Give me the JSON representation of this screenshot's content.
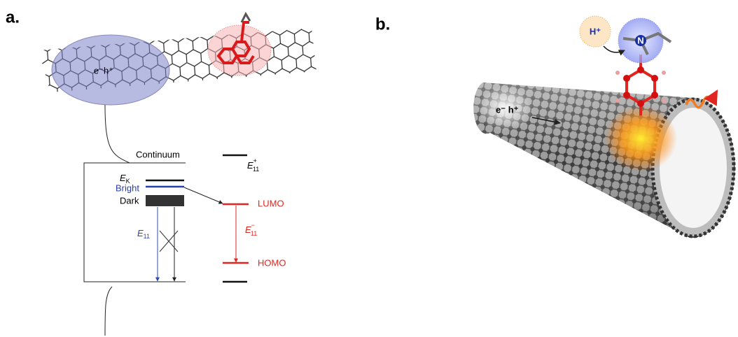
{
  "panel_a": {
    "label": "a.",
    "exciton": "e⁻h⁺",
    "continuum": "Continuum",
    "ek": {
      "base": "E",
      "sub": "K"
    },
    "bright": "Bright",
    "dark": "Dark",
    "e11": {
      "base": "E",
      "sub": "11"
    },
    "e11_plus": {
      "base": "E",
      "sub": "11",
      "sup": "+"
    },
    "e11_minus": {
      "base": "E",
      "sub": "11",
      "sup": "−"
    },
    "lumo": "LUMO",
    "homo": "HOMO"
  },
  "panel_b": {
    "label": "b.",
    "exciton": "e⁻ h⁺",
    "proton": "H⁺",
    "nitrogen": "N"
  }
}
